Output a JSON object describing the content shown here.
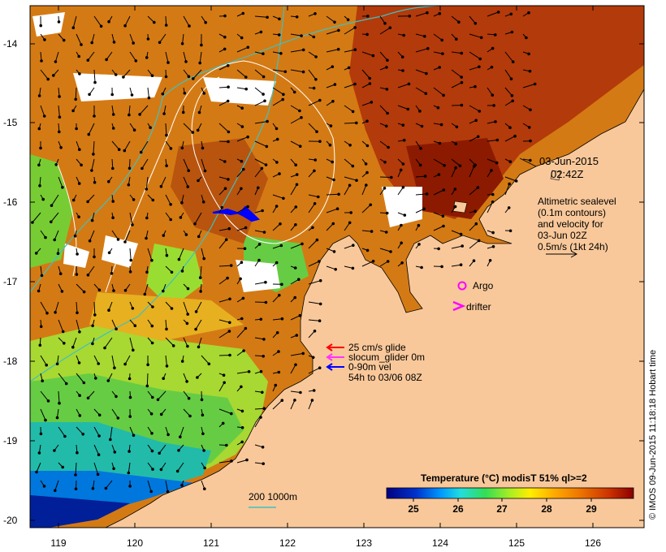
{
  "map": {
    "lon_ticks": [
      "119",
      "120",
      "121",
      "122",
      "123",
      "124",
      "125",
      "126"
    ],
    "lat_ticks": [
      "-14",
      "-15",
      "-16",
      "-17",
      "-18",
      "-19",
      "-20"
    ],
    "lon_range": [
      118.65,
      126.7
    ],
    "lat_range": [
      -20.1,
      -13.55
    ]
  },
  "annotations": {
    "date": "03-Jun-2015",
    "time": "02:42Z",
    "altimetry": [
      "Altimetric sealevel",
      "(0.1m contours)",
      "and velocity for",
      "03-Jun 02Z",
      "0.5m/s (1kt 24h)"
    ]
  },
  "legend": {
    "argo": "Argo",
    "drifter": "drifter",
    "glider_items": [
      {
        "label": "25 cm/s glide",
        "color": "#ff0000"
      },
      {
        "label": "slocum_glider 0m",
        "color": "#ff33ff"
      },
      {
        "label": "0-90m vel",
        "color": "#0000ff"
      }
    ],
    "glider_note": "54h to 03/06 08Z",
    "bathy": "200  1000m"
  },
  "colorbar": {
    "title": "Temperature (°C) modisT 51% ql>=2",
    "ticks": [
      "25",
      "26",
      "27",
      "28",
      "29"
    ],
    "range": [
      24.3,
      29.9
    ]
  },
  "credit": "© IMOS 09-Jun-2015 11:18:18 Hobart time",
  "colors": {
    "land": "#f9c89a",
    "bathy_contour": "#40c0c0",
    "sealevel_contour": "#ffffff",
    "argo": "#ff00ff",
    "drifter": "#ff00ff",
    "glider_track": "#0000ff"
  }
}
